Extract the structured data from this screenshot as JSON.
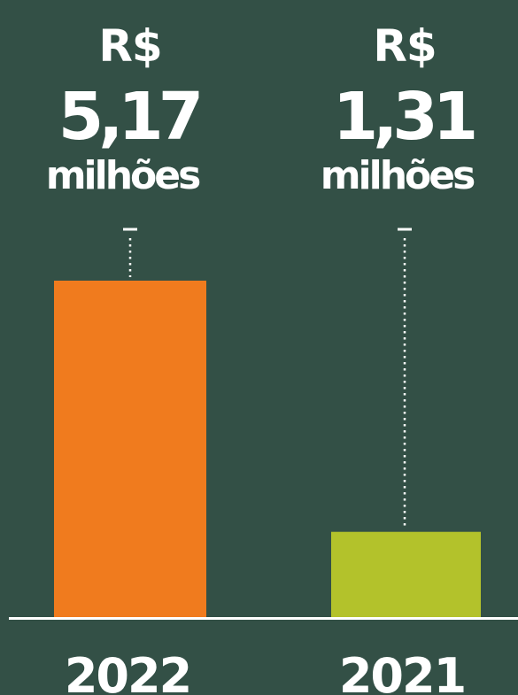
{
  "colors": {
    "background": "#335046",
    "baseline": "#ffffff",
    "leaders": "#ffffff",
    "text": "#ffffff"
  },
  "chart_data": {
    "type": "bar",
    "categories": [
      "2022",
      "2021"
    ],
    "values": [
      5.17,
      1.31
    ],
    "ylim": [
      0,
      5.17
    ],
    "grid": false,
    "legend": "none",
    "bars": [
      {
        "category": "2022",
        "value": 5.17,
        "currency": "R$",
        "value_label": "5,17",
        "unit": "milhões",
        "color": "#f07b1e"
      },
      {
        "category": "2021",
        "value": 1.31,
        "currency": "R$",
        "value_label": "1,31",
        "unit": "milhões",
        "color": "#b3c22b"
      }
    ]
  }
}
